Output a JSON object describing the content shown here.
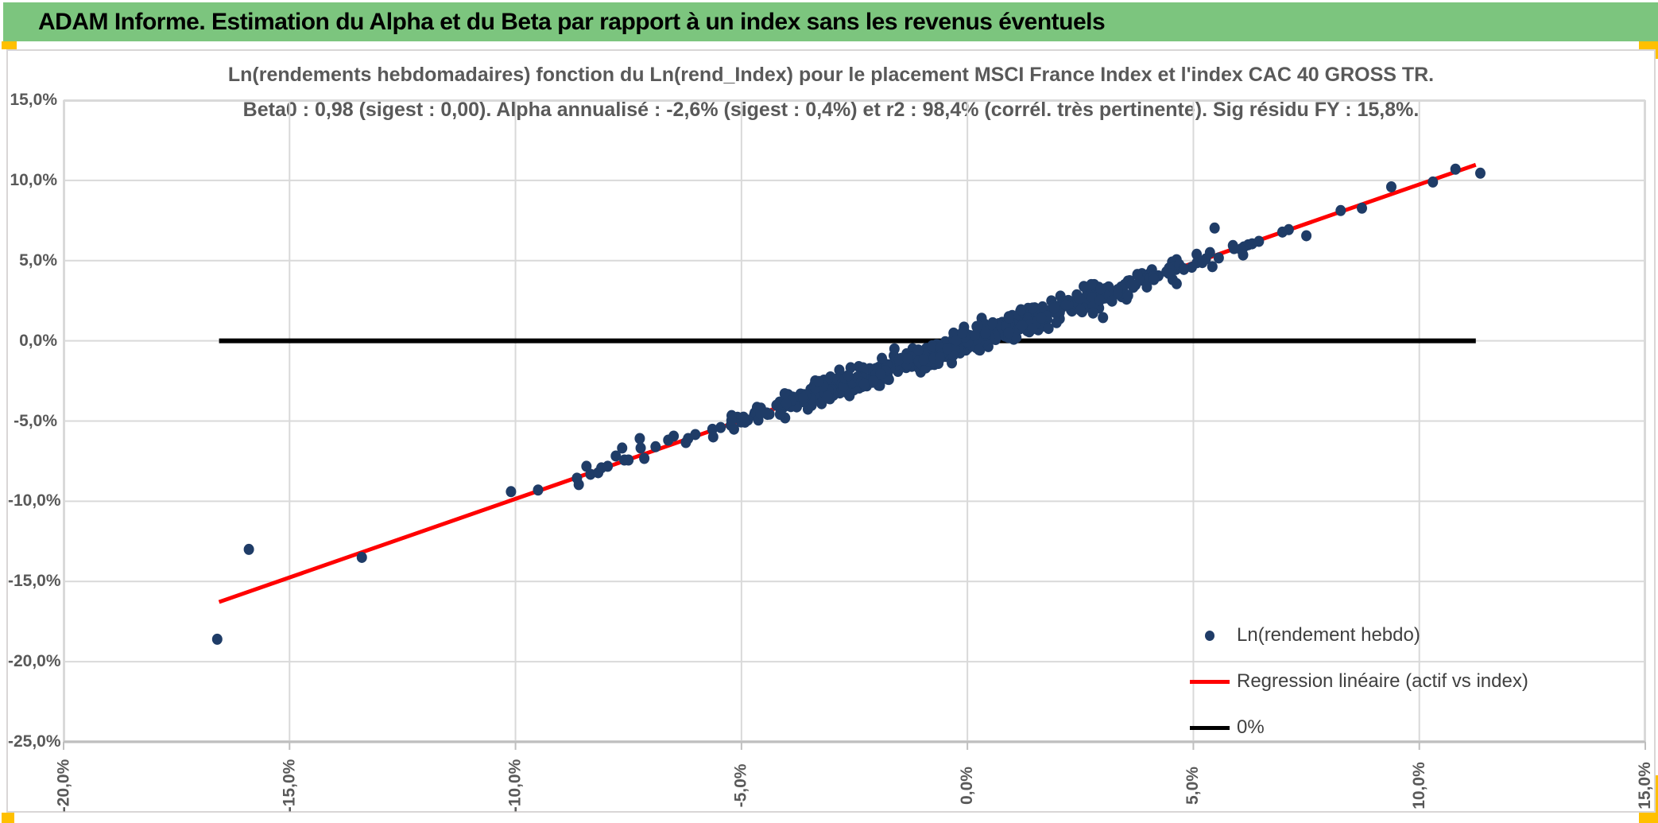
{
  "header": {
    "title": "ADAM Informe. Estimation du Alpha et du Beta par rapport à un index sans les revenus éventuels"
  },
  "chart": {
    "title_line1": "Ln(rendements hebdomadaires) fonction du Ln(rend_Index) pour le placement MSCI France Index et l'index CAC 40 GROSS TR.",
    "title_line2": "Beta0 : 0,98 (sigest : 0,00). Alpha annualisé : -2,6% (sigest : 0,4%) et r2 : 98,4% (corrél. très pertinente). Sig résidu FY : 15,8%.",
    "legend": [
      {
        "label": "Ln(rendement hebdo)",
        "marker": "dot"
      },
      {
        "label": "Regression linéaire (actif vs index)",
        "marker": "line-red"
      },
      {
        "label": "0%",
        "marker": "line-black"
      }
    ],
    "stats_shown_in_title": {
      "beta0": "0,98",
      "sigest_beta": "0,00",
      "alpha_annualise": "-2,6%",
      "sigest_alpha": "0,4%",
      "r2": "98,4%",
      "sig_residu_fy": "15,8%"
    }
  },
  "colors": {
    "header_green": "#7CC57E",
    "accent_orange": "#FFC000",
    "dot_navy": "#1F3C67",
    "regression_red": "#FF0000",
    "zero_line_black": "#000000",
    "gridline": "#D9D9D9",
    "axis_line": "#BFBFBF",
    "title_gray": "#595959",
    "legend_text": "#404040"
  },
  "chart_data": {
    "type": "scatter",
    "grid": true,
    "legend_position": "inside-bottom-right",
    "x_axis": {
      "min": -20,
      "max": 15,
      "step": 5,
      "tick_labels": [
        "-20,0%",
        "-15,0%",
        "-10,0%",
        "-5,0%",
        "0,0%",
        "5,0%",
        "10,0%",
        "15,0%"
      ],
      "label_rotation_deg": -90
    },
    "y_axis": {
      "min": -25,
      "max": 15,
      "step": 5,
      "tick_labels": [
        "15,0%",
        "10,0%",
        "5,0%",
        "0,0%",
        "-5,0%",
        "-10,0%",
        "-15,0%",
        "-20,0%",
        "-25,0%"
      ]
    },
    "series": [
      {
        "name": "Ln(rendement hebdo)",
        "type": "scatter",
        "explicit_points": [
          [
            -16.6,
            -18.6
          ],
          [
            -15.9,
            -13.0
          ],
          [
            -13.4,
            -13.5
          ],
          [
            -10.1,
            -9.4
          ],
          [
            -9.5,
            -9.3
          ],
          [
            -8.64,
            -8.56
          ],
          [
            -8.6,
            -8.96
          ],
          [
            -8.43,
            -7.82
          ],
          [
            -8.34,
            -8.32
          ],
          [
            -8.17,
            -8.22
          ],
          [
            -8.1,
            -7.92
          ],
          [
            -7.96,
            -7.82
          ],
          [
            -7.78,
            -7.18
          ],
          [
            -7.64,
            -6.68
          ],
          [
            -7.59,
            -7.43
          ],
          [
            -7.5,
            -7.43
          ],
          [
            -7.25,
            -6.09
          ],
          [
            -7.23,
            -6.68
          ],
          [
            -7.15,
            -7.33
          ],
          [
            -6.9,
            -6.6
          ],
          [
            -6.62,
            -6.19
          ],
          [
            -6.5,
            -5.94
          ],
          [
            -6.23,
            -6.34
          ],
          [
            -6.18,
            -6.09
          ],
          [
            -6.02,
            -5.84
          ],
          [
            2.78,
            1.73
          ],
          [
            3.0,
            1.45
          ],
          [
            4.63,
            3.56
          ],
          [
            5.47,
            7.03
          ],
          [
            5.9,
            5.75
          ],
          [
            6.1,
            5.35
          ],
          [
            6.3,
            6.05
          ],
          [
            6.45,
            6.2
          ],
          [
            6.97,
            6.78
          ],
          [
            7.11,
            6.93
          ],
          [
            7.5,
            6.55
          ],
          [
            8.26,
            8.12
          ],
          [
            8.73,
            8.27
          ],
          [
            9.38,
            9.6
          ],
          [
            10.3,
            9.9
          ],
          [
            10.8,
            10.7
          ],
          [
            11.35,
            10.45
          ]
        ],
        "generated_cluster": {
          "count": 600,
          "seed": 7,
          "x_mean": 0,
          "x_sd": 2.5,
          "x_min": -6.2,
          "x_max": 6.3,
          "beta": 0.98,
          "alpha_weekly_pct": -0.05,
          "residual_sd": 0.38,
          "residual_clip": 1.15
        }
      },
      {
        "name": "Regression linéaire (actif vs index)",
        "type": "line",
        "beta": 0.98,
        "alpha_weekly_pct": -0.05,
        "x_range": [
          -16.56,
          11.25
        ]
      },
      {
        "name": "0%",
        "type": "line",
        "y": 0,
        "x_range": [
          -16.56,
          11.25
        ]
      }
    ]
  }
}
